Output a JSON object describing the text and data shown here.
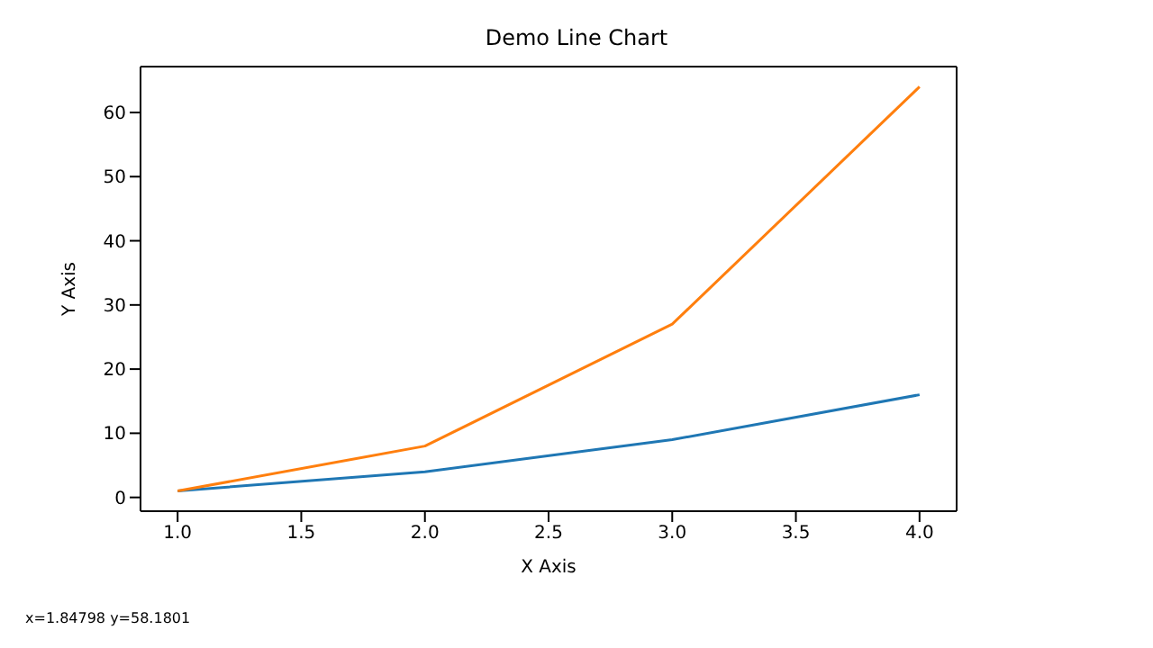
{
  "chart_data": {
    "type": "line",
    "title": "Demo Line Chart",
    "xlabel": "X Axis",
    "ylabel": "Y Axis",
    "x": [
      1,
      2,
      3,
      4
    ],
    "series": [
      {
        "color": "#1f77b4",
        "values": [
          1,
          4,
          9,
          16
        ]
      },
      {
        "color": "#ff7f0e",
        "values": [
          1,
          8,
          27,
          64
        ]
      }
    ],
    "xlim": [
      0.85,
      4.15
    ],
    "xticks": [
      {
        "value": 1,
        "label": "1.0"
      },
      {
        "value": 1.5,
        "label": "1.5"
      },
      {
        "value": 2,
        "label": "2.0"
      },
      {
        "value": 2.5,
        "label": "2.5"
      },
      {
        "value": 3,
        "label": "3.0"
      },
      {
        "value": 3.5,
        "label": "3.5"
      },
      {
        "value": 4,
        "label": "4.0"
      }
    ],
    "ylim": [
      -2.15,
      67.15
    ],
    "yticks": [
      0,
      10,
      20,
      30,
      40,
      50,
      60
    ],
    "grid": false,
    "legend": false,
    "marker": "none",
    "line_style": "solid",
    "annotations": [
      "x=1.84798   y=58.1801"
    ]
  }
}
